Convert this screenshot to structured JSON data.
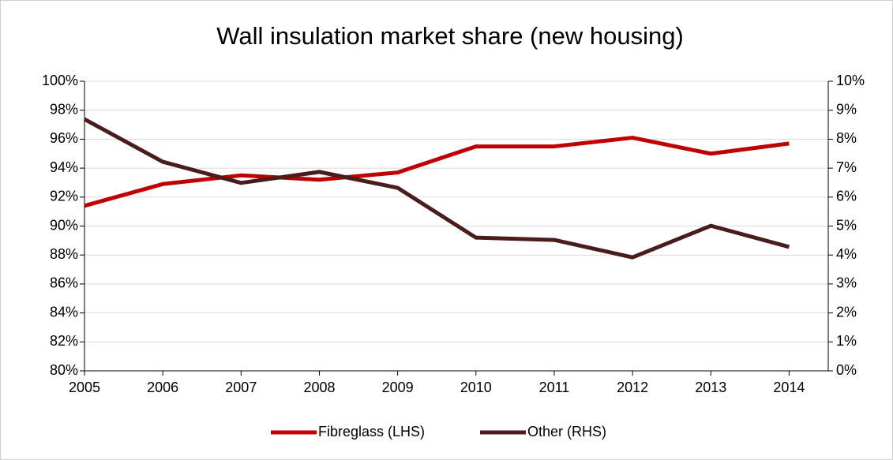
{
  "chart_data": {
    "type": "line",
    "title": "Wall insulation market share (new housing)",
    "x": [
      2005,
      2006,
      2007,
      2008,
      2009,
      2010,
      2011,
      2012,
      2013,
      2014
    ],
    "xlim": [
      2005,
      2014.5
    ],
    "xticks": [
      2005,
      2006,
      2007,
      2008,
      2009,
      2010,
      2011,
      2012,
      2013,
      2014
    ],
    "series": [
      {
        "name": "Fibreglass (LHS)",
        "color": "#c00000",
        "values": [
          91.4,
          92.9,
          93.5,
          93.2,
          93.7,
          95.5,
          95.5,
          96.1,
          95.0,
          95.7
        ]
      },
      {
        "name": "Other (RHS)",
        "color": "#4a1c1c",
        "axis": "y2",
        "values": [
          8.69,
          7.22,
          6.49,
          6.87,
          6.32,
          4.6,
          4.52,
          3.92,
          5.01,
          4.28
        ]
      }
    ],
    "ylim": [
      80,
      100
    ],
    "yticks": [
      {
        "value": 80,
        "label": "80%"
      },
      {
        "value": 82,
        "label": "82%"
      },
      {
        "value": 84,
        "label": "84%"
      },
      {
        "value": 86,
        "label": "86%"
      },
      {
        "value": 88,
        "label": "88%"
      },
      {
        "value": 90,
        "label": "90%"
      },
      {
        "value": 92,
        "label": "92%"
      },
      {
        "value": 94,
        "label": "94%"
      },
      {
        "value": 96,
        "label": "96%"
      },
      {
        "value": 98,
        "label": "98%"
      },
      {
        "value": 100,
        "label": "100%"
      }
    ],
    "y2lim": [
      0,
      10
    ],
    "y2ticks": [
      {
        "value": 0,
        "label": "0%"
      },
      {
        "value": 1,
        "label": "1%"
      },
      {
        "value": 2,
        "label": "2%"
      },
      {
        "value": 3,
        "label": "3%"
      },
      {
        "value": 4,
        "label": "4%"
      },
      {
        "value": 5,
        "label": "5%"
      },
      {
        "value": 6,
        "label": "6%"
      },
      {
        "value": 7,
        "label": "7%"
      },
      {
        "value": 8,
        "label": "8%"
      },
      {
        "value": 9,
        "label": "9%"
      },
      {
        "value": 10,
        "label": "10%"
      }
    ],
    "grid": true,
    "legend": "bottom"
  }
}
